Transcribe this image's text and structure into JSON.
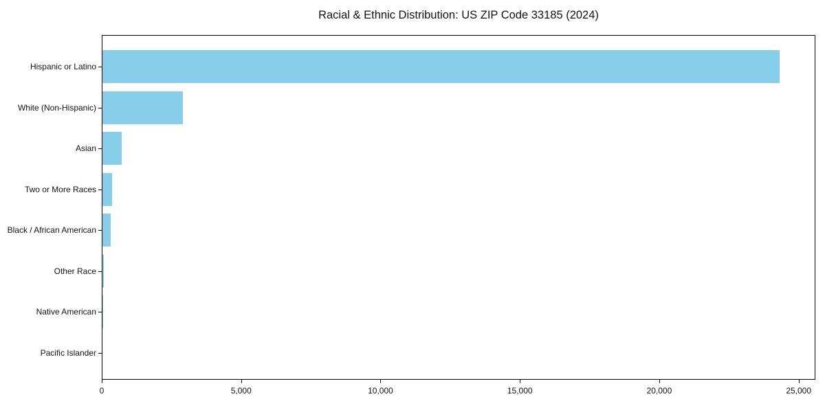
{
  "figure": {
    "title": "Racial & Ethnic Distribution: US ZIP Code 33185 (2024)"
  },
  "chart_data": {
    "type": "bar",
    "orientation": "horizontal",
    "title": "Racial & Ethnic Distribution: US ZIP Code 33185 (2024)",
    "categories": [
      "Hispanic or Latino",
      "White (Non-Hispanic)",
      "Asian",
      "Two or More Races",
      "Black / African American",
      "Other Race",
      "Native American",
      "Pacific Islander"
    ],
    "values": [
      24350,
      2900,
      700,
      350,
      300,
      40,
      10,
      0
    ],
    "xlabel": "",
    "ylabel": "",
    "xlim": [
      0,
      25600
    ],
    "xticks": {
      "values": [
        0,
        5000,
        10000,
        15000,
        20000,
        25000
      ],
      "labels": [
        "0",
        "5,000",
        "10,000",
        "15,000",
        "20,000",
        "25,000"
      ]
    },
    "bar_color": "#87CEEB",
    "grid": false,
    "legend": null
  }
}
